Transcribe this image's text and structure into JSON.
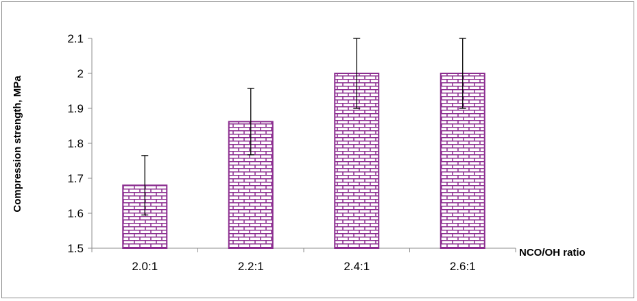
{
  "chart_data": {
    "type": "bar",
    "categories": [
      "2.0:1",
      "2.2:1",
      "2.4:1",
      "2.6:1"
    ],
    "values": [
      1.68,
      1.862,
      2.0,
      2.0
    ],
    "error_bars": [
      0.085,
      0.095,
      0.1,
      0.1
    ],
    "xlabel": "NCO/OH ratio",
    "ylabel": "Compression strength, MPa",
    "ylim": [
      1.5,
      2.1
    ],
    "yticks": [
      1.5,
      1.6,
      1.7,
      1.8,
      1.9,
      2.0,
      2.1
    ],
    "ytick_labels": [
      "1.5",
      "1.6",
      "1.7",
      "1.8",
      "1.9",
      "2",
      "2.1"
    ],
    "grid": false,
    "legend": "none",
    "bar_pattern": "brick",
    "colors": {
      "bar_outline": "#8b2d8f",
      "bar_fill": "#ffffff",
      "error_bar": "#000000",
      "axis": "#8c8c8c"
    }
  }
}
